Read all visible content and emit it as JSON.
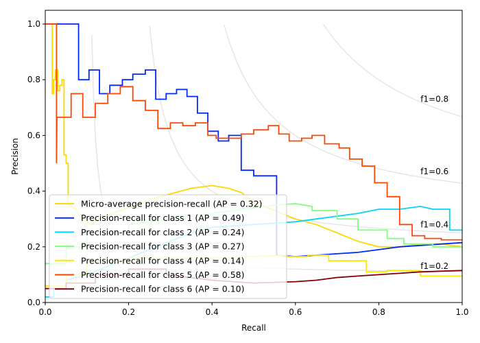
{
  "chart_data": {
    "type": "line",
    "title": "",
    "xlabel": "Recall",
    "ylabel": "Precision",
    "xlim": [
      0.0,
      1.0
    ],
    "ylim": [
      0.0,
      1.05
    ],
    "xticks": [
      "0.0",
      "0.2",
      "0.4",
      "0.6",
      "0.8",
      "1.0"
    ],
    "xtick_values": [
      0.0,
      0.2,
      0.4,
      0.6,
      0.8,
      1.0
    ],
    "yticks": [
      "0.0",
      "0.2",
      "0.4",
      "0.6",
      "0.8",
      "1.0"
    ],
    "ytick_values": [
      0.0,
      0.2,
      0.4,
      0.6,
      0.8,
      1.0
    ],
    "grid": false,
    "legend_placement": "lower-left",
    "iso_f1": [
      {
        "f1": 0.2,
        "label": "f1=0.2",
        "label_y": 0.13
      },
      {
        "f1": 0.4,
        "label": "f1=0.4",
        "label_y": 0.28
      },
      {
        "f1": 0.6,
        "label": "f1=0.6",
        "label_y": 0.47
      },
      {
        "f1": 0.8,
        "label": "f1=0.8",
        "label_y": 0.73
      }
    ],
    "iso_color": "#e6e6e6",
    "series": [
      {
        "name": "Micro-average precision-recall (AP = 0.32)",
        "color": "#ffd700",
        "points": [
          [
            0.0,
            1.0
          ],
          [
            0.017,
            1.0
          ],
          [
            0.017,
            0.75
          ],
          [
            0.02,
            0.75
          ],
          [
            0.02,
            0.8
          ],
          [
            0.024,
            0.8
          ],
          [
            0.024,
            0.835
          ],
          [
            0.03,
            0.835
          ],
          [
            0.03,
            0.76
          ],
          [
            0.035,
            0.76
          ],
          [
            0.035,
            0.78
          ],
          [
            0.04,
            0.78
          ],
          [
            0.04,
            0.8
          ],
          [
            0.045,
            0.8
          ],
          [
            0.045,
            0.53
          ],
          [
            0.05,
            0.53
          ],
          [
            0.05,
            0.5
          ],
          [
            0.055,
            0.5
          ],
          [
            0.055,
            0.35
          ],
          [
            0.07,
            0.34
          ],
          [
            0.09,
            0.3
          ],
          [
            0.11,
            0.28
          ],
          [
            0.13,
            0.3
          ],
          [
            0.16,
            0.32
          ],
          [
            0.2,
            0.34
          ],
          [
            0.25,
            0.37
          ],
          [
            0.3,
            0.39
          ],
          [
            0.35,
            0.41
          ],
          [
            0.4,
            0.42
          ],
          [
            0.44,
            0.41
          ],
          [
            0.47,
            0.395
          ],
          [
            0.5,
            0.36
          ],
          [
            0.55,
            0.33
          ],
          [
            0.6,
            0.3
          ],
          [
            0.65,
            0.28
          ],
          [
            0.7,
            0.25
          ],
          [
            0.75,
            0.22
          ],
          [
            0.8,
            0.2
          ],
          [
            0.85,
            0.2
          ],
          [
            0.9,
            0.21
          ],
          [
            0.95,
            0.21
          ],
          [
            1.0,
            0.2
          ]
        ]
      },
      {
        "name": "Precision-recall for class 1 (AP = 0.49)",
        "color": "#0028ff",
        "points": [
          [
            0.0,
            1.0
          ],
          [
            0.08,
            1.0
          ],
          [
            0.08,
            0.8
          ],
          [
            0.105,
            0.8
          ],
          [
            0.105,
            0.835
          ],
          [
            0.13,
            0.835
          ],
          [
            0.13,
            0.75
          ],
          [
            0.155,
            0.75
          ],
          [
            0.155,
            0.78
          ],
          [
            0.185,
            0.78
          ],
          [
            0.185,
            0.8
          ],
          [
            0.21,
            0.8
          ],
          [
            0.21,
            0.82
          ],
          [
            0.24,
            0.82
          ],
          [
            0.24,
            0.835
          ],
          [
            0.265,
            0.835
          ],
          [
            0.265,
            0.73
          ],
          [
            0.29,
            0.73
          ],
          [
            0.29,
            0.75
          ],
          [
            0.315,
            0.75
          ],
          [
            0.315,
            0.765
          ],
          [
            0.34,
            0.765
          ],
          [
            0.34,
            0.74
          ],
          [
            0.365,
            0.74
          ],
          [
            0.365,
            0.68
          ],
          [
            0.39,
            0.68
          ],
          [
            0.39,
            0.615
          ],
          [
            0.415,
            0.615
          ],
          [
            0.415,
            0.58
          ],
          [
            0.44,
            0.58
          ],
          [
            0.44,
            0.6
          ],
          [
            0.47,
            0.6
          ],
          [
            0.47,
            0.475
          ],
          [
            0.5,
            0.475
          ],
          [
            0.5,
            0.455
          ],
          [
            0.555,
            0.455
          ],
          [
            0.555,
            0.17
          ],
          [
            0.6,
            0.165
          ],
          [
            0.65,
            0.17
          ],
          [
            0.7,
            0.175
          ],
          [
            0.75,
            0.18
          ],
          [
            0.8,
            0.19
          ],
          [
            0.85,
            0.2
          ],
          [
            0.9,
            0.205
          ],
          [
            0.95,
            0.21
          ],
          [
            1.0,
            0.215
          ]
        ]
      },
      {
        "name": "Precision-recall for class 2 (AP = 0.24)",
        "color": "#00d4ff",
        "points": [
          [
            0.0,
            0.02
          ],
          [
            0.02,
            0.02
          ],
          [
            0.02,
            0.05
          ],
          [
            0.05,
            0.05
          ],
          [
            0.05,
            0.08
          ],
          [
            0.1,
            0.1
          ],
          [
            0.15,
            0.13
          ],
          [
            0.2,
            0.16
          ],
          [
            0.25,
            0.19
          ],
          [
            0.3,
            0.22
          ],
          [
            0.35,
            0.25
          ],
          [
            0.4,
            0.27
          ],
          [
            0.5,
            0.28
          ],
          [
            0.6,
            0.29
          ],
          [
            0.65,
            0.3
          ],
          [
            0.7,
            0.31
          ],
          [
            0.75,
            0.32
          ],
          [
            0.8,
            0.335
          ],
          [
            0.85,
            0.335
          ],
          [
            0.9,
            0.345
          ],
          [
            0.93,
            0.335
          ],
          [
            0.97,
            0.335
          ],
          [
            0.97,
            0.26
          ],
          [
            1.0,
            0.26
          ]
        ]
      },
      {
        "name": "Precision-recall for class 3 (AP = 0.27)",
        "color": "#7fff7a",
        "points": [
          [
            0.0,
            0.14
          ],
          [
            0.05,
            0.14
          ],
          [
            0.05,
            0.2
          ],
          [
            0.1,
            0.2
          ],
          [
            0.1,
            0.25
          ],
          [
            0.2,
            0.25
          ],
          [
            0.2,
            0.28
          ],
          [
            0.3,
            0.3
          ],
          [
            0.4,
            0.32
          ],
          [
            0.5,
            0.34
          ],
          [
            0.55,
            0.35
          ],
          [
            0.6,
            0.355
          ],
          [
            0.64,
            0.345
          ],
          [
            0.64,
            0.33
          ],
          [
            0.7,
            0.33
          ],
          [
            0.7,
            0.3
          ],
          [
            0.75,
            0.3
          ],
          [
            0.75,
            0.26
          ],
          [
            0.82,
            0.26
          ],
          [
            0.82,
            0.23
          ],
          [
            0.86,
            0.23
          ],
          [
            0.86,
            0.21
          ],
          [
            0.93,
            0.21
          ],
          [
            0.93,
            0.2
          ],
          [
            1.0,
            0.2
          ]
        ]
      },
      {
        "name": "Precision-recall for class 4 (AP = 0.14)",
        "color": "#ffe600",
        "points": [
          [
            0.0,
            0.06
          ],
          [
            0.05,
            0.06
          ],
          [
            0.05,
            0.1
          ],
          [
            0.1,
            0.1
          ],
          [
            0.1,
            0.15
          ],
          [
            0.2,
            0.15
          ],
          [
            0.2,
            0.16
          ],
          [
            0.4,
            0.16
          ],
          [
            0.58,
            0.17
          ],
          [
            0.58,
            0.165
          ],
          [
            0.63,
            0.165
          ],
          [
            0.63,
            0.17
          ],
          [
            0.68,
            0.17
          ],
          [
            0.68,
            0.15
          ],
          [
            0.77,
            0.15
          ],
          [
            0.77,
            0.11
          ],
          [
            0.82,
            0.11
          ],
          [
            0.82,
            0.115
          ],
          [
            0.9,
            0.115
          ],
          [
            0.9,
            0.095
          ],
          [
            1.0,
            0.095
          ]
        ]
      },
      {
        "name": "Precision-recall for class 5 (AP = 0.58)",
        "color": "#ff4500",
        "points": [
          [
            0.0,
            1.0
          ],
          [
            0.027,
            1.0
          ],
          [
            0.027,
            0.5
          ],
          [
            0.028,
            0.665
          ],
          [
            0.062,
            0.665
          ],
          [
            0.062,
            0.75
          ],
          [
            0.09,
            0.75
          ],
          [
            0.09,
            0.665
          ],
          [
            0.12,
            0.665
          ],
          [
            0.12,
            0.715
          ],
          [
            0.15,
            0.715
          ],
          [
            0.15,
            0.75
          ],
          [
            0.18,
            0.75
          ],
          [
            0.18,
            0.775
          ],
          [
            0.21,
            0.775
          ],
          [
            0.21,
            0.725
          ],
          [
            0.24,
            0.725
          ],
          [
            0.24,
            0.69
          ],
          [
            0.27,
            0.69
          ],
          [
            0.27,
            0.625
          ],
          [
            0.3,
            0.625
          ],
          [
            0.3,
            0.645
          ],
          [
            0.33,
            0.645
          ],
          [
            0.33,
            0.635
          ],
          [
            0.36,
            0.635
          ],
          [
            0.36,
            0.645
          ],
          [
            0.39,
            0.645
          ],
          [
            0.39,
            0.6
          ],
          [
            0.41,
            0.6
          ],
          [
            0.41,
            0.59
          ],
          [
            0.47,
            0.59
          ],
          [
            0.47,
            0.605
          ],
          [
            0.5,
            0.605
          ],
          [
            0.5,
            0.62
          ],
          [
            0.535,
            0.62
          ],
          [
            0.535,
            0.635
          ],
          [
            0.56,
            0.635
          ],
          [
            0.56,
            0.605
          ],
          [
            0.585,
            0.605
          ],
          [
            0.585,
            0.58
          ],
          [
            0.615,
            0.58
          ],
          [
            0.615,
            0.59
          ],
          [
            0.64,
            0.59
          ],
          [
            0.64,
            0.6
          ],
          [
            0.67,
            0.6
          ],
          [
            0.67,
            0.57
          ],
          [
            0.705,
            0.57
          ],
          [
            0.705,
            0.555
          ],
          [
            0.73,
            0.555
          ],
          [
            0.73,
            0.515
          ],
          [
            0.76,
            0.515
          ],
          [
            0.76,
            0.49
          ],
          [
            0.79,
            0.49
          ],
          [
            0.79,
            0.43
          ],
          [
            0.82,
            0.43
          ],
          [
            0.82,
            0.38
          ],
          [
            0.85,
            0.38
          ],
          [
            0.85,
            0.28
          ],
          [
            0.88,
            0.28
          ],
          [
            0.88,
            0.24
          ],
          [
            0.91,
            0.24
          ],
          [
            0.91,
            0.23
          ],
          [
            0.95,
            0.23
          ],
          [
            0.95,
            0.225
          ],
          [
            1.0,
            0.225
          ]
        ]
      },
      {
        "name": "Precision-recall for class 6 (AP = 0.10)",
        "color": "#800000",
        "points": [
          [
            0.0,
            0.05
          ],
          [
            0.05,
            0.05
          ],
          [
            0.05,
            0.07
          ],
          [
            0.12,
            0.07
          ],
          [
            0.12,
            0.1
          ],
          [
            0.2,
            0.1
          ],
          [
            0.2,
            0.12
          ],
          [
            0.29,
            0.12
          ],
          [
            0.29,
            0.1
          ],
          [
            0.4,
            0.08
          ],
          [
            0.5,
            0.07
          ],
          [
            0.6,
            0.075
          ],
          [
            0.65,
            0.08
          ],
          [
            0.7,
            0.09
          ],
          [
            0.75,
            0.095
          ],
          [
            0.8,
            0.1
          ],
          [
            0.85,
            0.105
          ],
          [
            0.9,
            0.11
          ],
          [
            1.0,
            0.115
          ]
        ]
      }
    ]
  }
}
